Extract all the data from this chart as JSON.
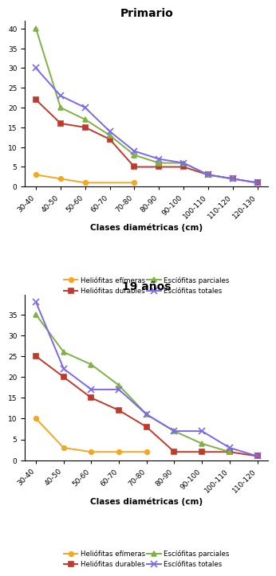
{
  "primario": {
    "title": "Primario",
    "x_labels": [
      "30-40",
      "40-50",
      "50-60",
      "60-70",
      "70-80",
      "80-90",
      "90-100",
      "100-110",
      "110-120",
      "120-130"
    ],
    "heliofit_efimeras": [
      3,
      2,
      1,
      null,
      1,
      null,
      null,
      null,
      null,
      null
    ],
    "heliofit_durables": [
      22,
      16,
      15,
      12,
      5,
      5,
      5,
      3,
      2,
      1
    ],
    "esciofit_parciales": [
      40,
      20,
      17,
      13,
      8,
      6,
      6,
      3,
      2,
      null
    ],
    "esciofit_totales": [
      30,
      23,
      20,
      14,
      9,
      7,
      6,
      3,
      2,
      1
    ]
  },
  "anios19": {
    "title": "19 años",
    "x_labels": [
      "30-40",
      "40-50",
      "50-60",
      "60-70",
      "70-80",
      "80-90",
      "90-100",
      "100-110",
      "110-120"
    ],
    "heliofit_efimeras": [
      10,
      3,
      2,
      2,
      2,
      null,
      null,
      null,
      null
    ],
    "heliofit_durables": [
      25,
      20,
      15,
      12,
      8,
      2,
      2,
      2,
      1
    ],
    "esciofit_parciales": [
      35,
      26,
      23,
      18,
      11,
      7,
      4,
      2,
      null
    ],
    "esciofit_totales": [
      38,
      22,
      17,
      17,
      11,
      7,
      7,
      3,
      1
    ]
  },
  "colors": {
    "heliofit_efimeras": "#F5A623",
    "heliofit_durables": "#C0392B",
    "esciofit_parciales": "#7CB342",
    "esciofit_totales": "#7B68EE"
  },
  "legend_labels": {
    "heliofit_efimeras": "Heliófitas efímeras",
    "heliofit_durables": "Heliófitas durables",
    "esciofit_parciales": "Escíófitas parciales",
    "esciofit_totales": "Escíófitas totales"
  },
  "xlabel": "Clases diamétricas (cm)",
  "background_color": "#ffffff"
}
